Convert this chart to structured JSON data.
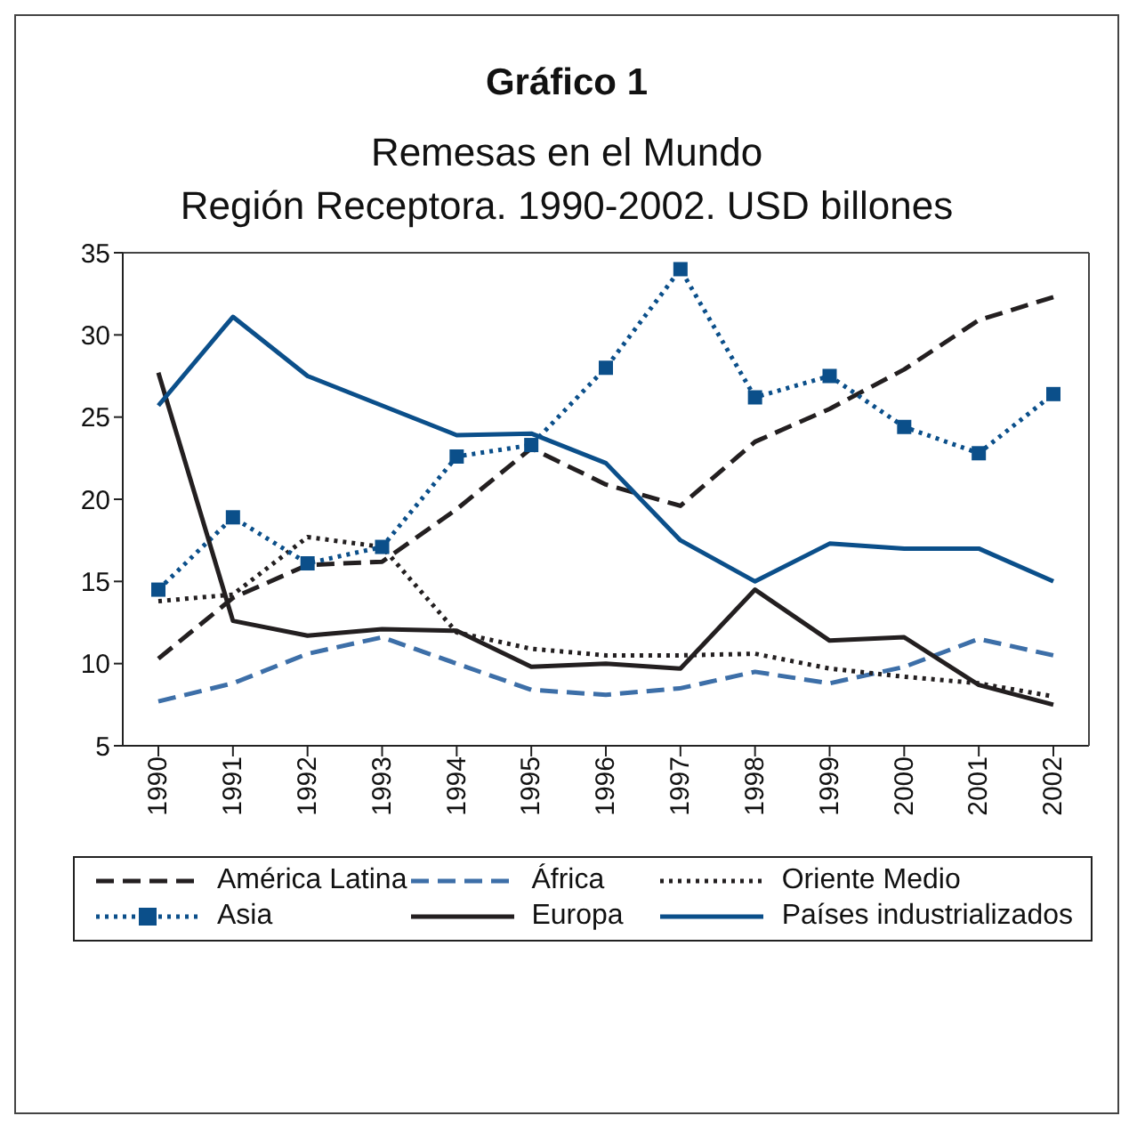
{
  "chart_data": {
    "type": "line",
    "title": "Gráfico 1",
    "subtitle": "Remesas en el Mundo\nRegión Receptora. 1990-2002. USD billones",
    "categories": [
      "1990",
      "1991",
      "1992",
      "1993",
      "1994",
      "1995",
      "1996",
      "1997",
      "1998",
      "1999",
      "2000",
      "2001",
      "2002"
    ],
    "ylim": [
      5,
      35
    ],
    "yticks": [
      5,
      10,
      15,
      20,
      25,
      30,
      35
    ],
    "grid": false,
    "legend": "bottom",
    "marker": "none",
    "series": [
      {
        "name": "América Latina",
        "color": "#231f20",
        "line_style": "dashed",
        "values": [
          10.3,
          14.0,
          16.0,
          16.2,
          19.4,
          23.1,
          20.9,
          19.6,
          23.5,
          25.5,
          27.9,
          30.9,
          32.3
        ]
      },
      {
        "name": "África",
        "color": "#3d6fa8",
        "line_style": "dashed",
        "values": [
          7.7,
          8.8,
          10.6,
          11.6,
          10.0,
          8.4,
          8.1,
          8.5,
          9.5,
          8.8,
          9.8,
          11.5,
          10.5
        ]
      },
      {
        "name": "Oriente Medio",
        "color": "#231f20",
        "line_style": "dotted",
        "values": [
          13.8,
          14.2,
          17.7,
          17.1,
          11.9,
          10.9,
          10.5,
          10.5,
          10.6,
          9.7,
          9.2,
          8.8,
          8.0
        ]
      },
      {
        "name": "Asia",
        "color": "#0b4f8a",
        "line_style": "dotted",
        "marker": "square",
        "values": [
          14.5,
          18.9,
          16.1,
          17.1,
          22.6,
          23.3,
          28.0,
          34.0,
          26.2,
          27.5,
          24.4,
          22.8,
          26.4
        ]
      },
      {
        "name": "Europa",
        "color": "#231f20",
        "line_style": "solid",
        "values": [
          27.7,
          12.6,
          11.7,
          12.1,
          12.0,
          9.8,
          10.0,
          9.7,
          14.5,
          11.4,
          11.6,
          8.7,
          7.5
        ]
      },
      {
        "name": "Países industrializados",
        "color": "#0b4f8a",
        "line_style": "solid",
        "values": [
          25.7,
          31.1,
          27.5,
          25.7,
          23.9,
          24.0,
          22.2,
          17.5,
          15.0,
          17.3,
          17.0,
          17.0,
          15.0
        ]
      }
    ]
  }
}
